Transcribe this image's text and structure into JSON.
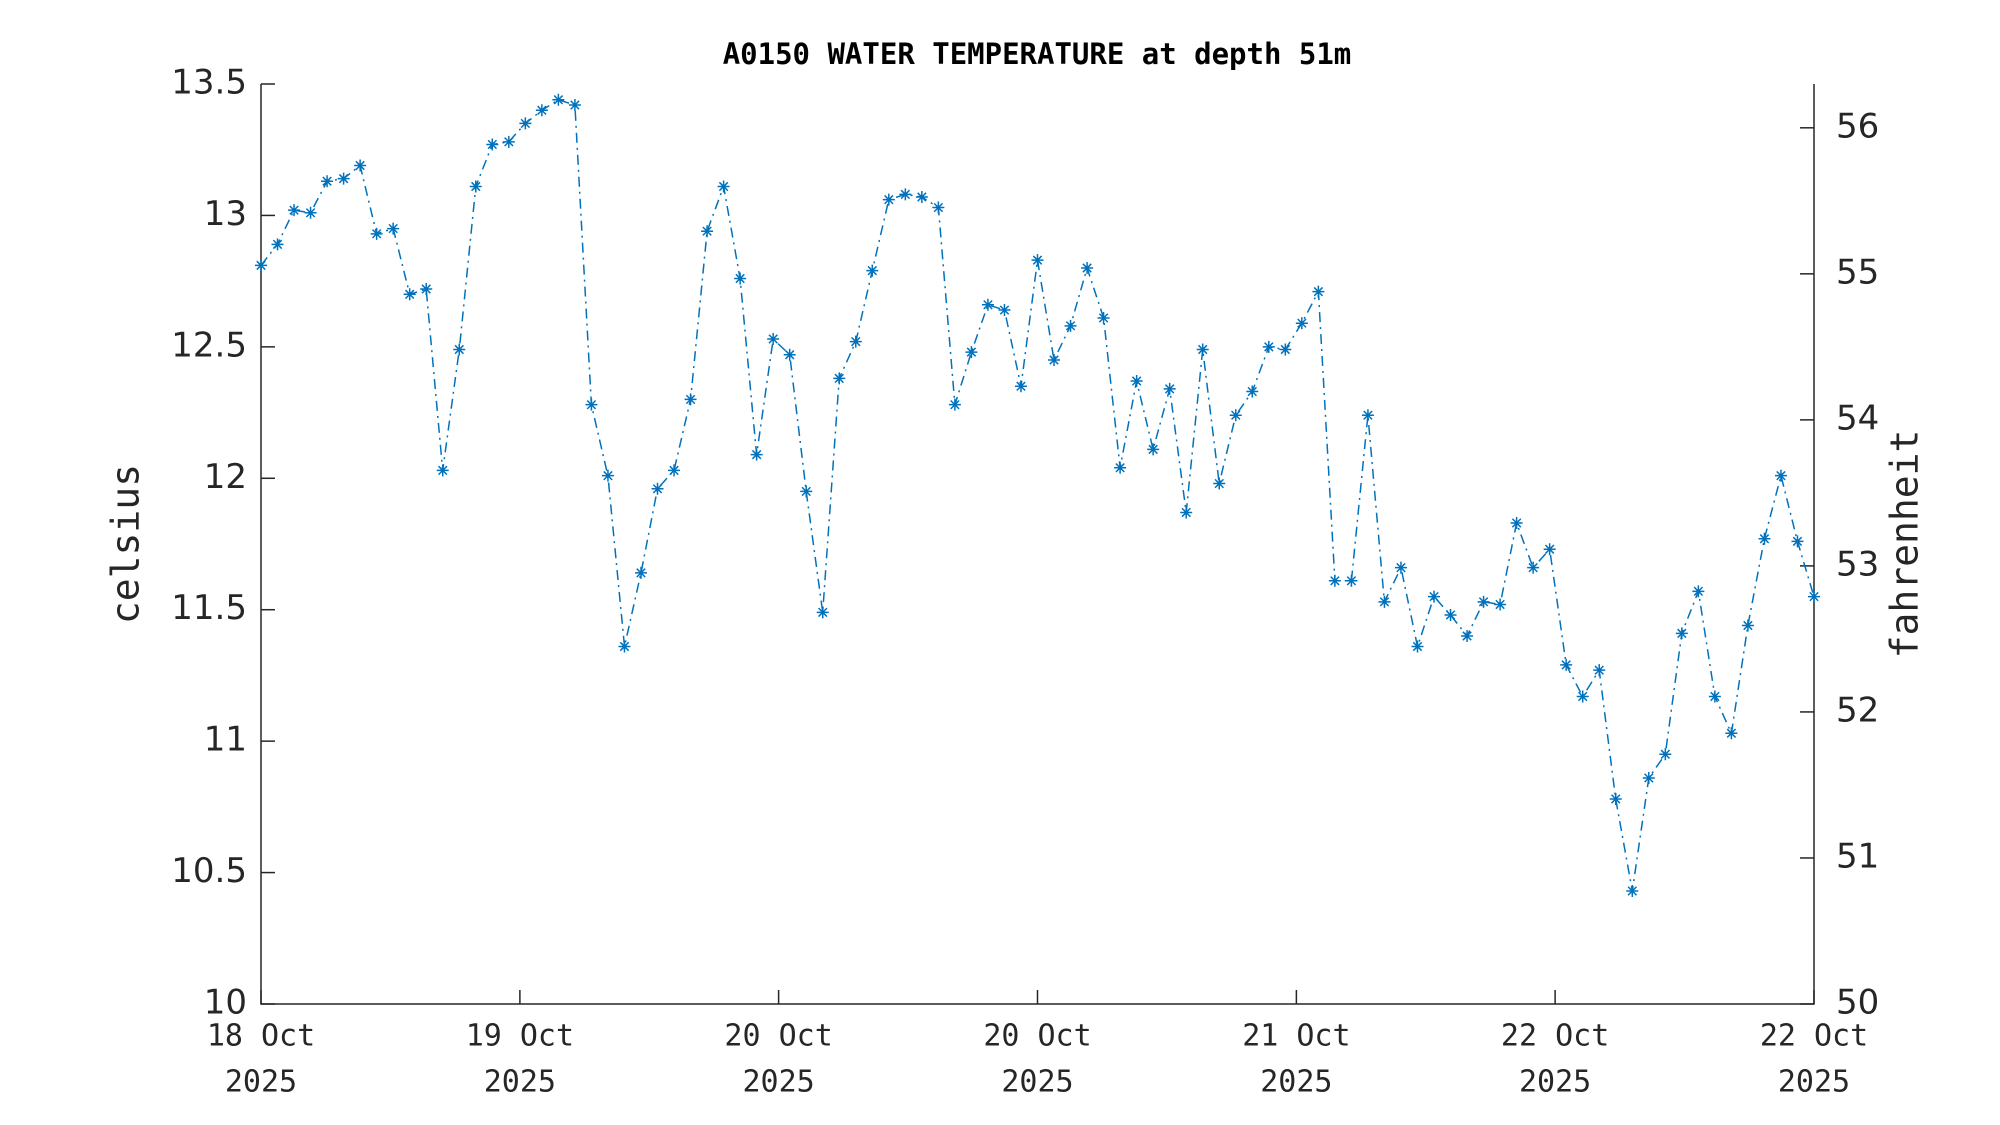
{
  "chart_data": {
    "type": "line",
    "title": "A0150 WATER TEMPERATURE at depth 51m",
    "ylabel": "celsius",
    "y2label": "fahrenheit",
    "x": [
      0,
      1,
      2,
      3,
      4,
      5,
      6,
      7,
      8,
      9,
      10,
      11,
      12,
      13,
      14,
      15,
      16,
      17,
      18,
      19,
      20,
      21,
      22,
      23,
      24,
      25,
      26,
      27,
      28,
      29,
      30,
      31,
      32,
      33,
      34,
      35,
      36,
      37,
      38,
      39,
      40,
      41,
      42,
      43,
      44,
      45,
      46,
      47,
      48,
      49,
      50,
      51,
      52,
      53,
      54,
      55,
      56,
      57,
      58,
      59,
      60,
      61,
      62,
      63,
      64,
      65,
      66,
      67,
      68,
      69,
      70,
      71,
      72,
      73,
      74,
      75,
      76,
      77,
      78,
      79,
      80,
      81,
      82,
      83,
      84,
      85,
      86,
      87,
      88,
      89,
      90,
      91,
      92,
      93,
      94
    ],
    "series": [
      {
        "name": "celsius",
        "color": "#0072bd",
        "values": [
          12.81,
          12.89,
          13.02,
          13.01,
          13.13,
          13.14,
          13.19,
          12.93,
          12.95,
          12.7,
          12.72,
          12.03,
          12.49,
          13.11,
          13.27,
          13.28,
          13.35,
          13.4,
          13.44,
          13.42,
          12.28,
          12.01,
          11.36,
          11.64,
          11.96,
          12.03,
          12.3,
          12.94,
          13.11,
          12.76,
          12.09,
          12.53,
          12.47,
          11.95,
          11.49,
          12.38,
          12.52,
          12.79,
          13.06,
          13.08,
          13.07,
          13.03,
          12.28,
          12.48,
          12.66,
          12.64,
          12.35,
          12.83,
          12.45,
          12.58,
          12.8,
          12.61,
          12.04,
          12.37,
          12.11,
          12.34,
          11.87,
          12.49,
          11.98,
          12.24,
          12.33,
          12.5,
          12.49,
          12.59,
          12.71,
          11.61,
          11.61,
          12.24,
          11.53,
          11.66,
          11.36,
          11.55,
          11.48,
          11.4,
          11.53,
          11.52,
          11.83,
          11.66,
          11.73,
          11.29,
          11.17,
          11.27,
          10.78,
          10.43,
          10.86,
          10.95,
          11.41,
          11.57,
          11.17,
          11.03,
          11.44,
          11.77,
          12.01,
          11.76,
          11.55
        ]
      }
    ],
    "xlim": [
      0,
      94
    ],
    "xticks": [
      {
        "value": 0,
        "label": "18 Oct",
        "year": "2025"
      },
      {
        "value": 15.67,
        "label": "19 Oct",
        "year": "2025"
      },
      {
        "value": 31.33,
        "label": "20 Oct",
        "year": "2025"
      },
      {
        "value": 47,
        "label": "20 Oct",
        "year": "2025"
      },
      {
        "value": 62.67,
        "label": "21 Oct",
        "year": "2025"
      },
      {
        "value": 78.33,
        "label": "22 Oct",
        "year": "2025"
      },
      {
        "value": 94,
        "label": "22 Oct",
        "year": "2025"
      }
    ],
    "ylim": [
      10,
      13.5
    ],
    "yticks": [
      10,
      10.5,
      11,
      11.5,
      12,
      12.5,
      13,
      13.5
    ],
    "y2lim": [
      50,
      56.3
    ],
    "y2ticks": [
      50,
      51,
      52,
      53,
      54,
      55,
      56
    ]
  }
}
